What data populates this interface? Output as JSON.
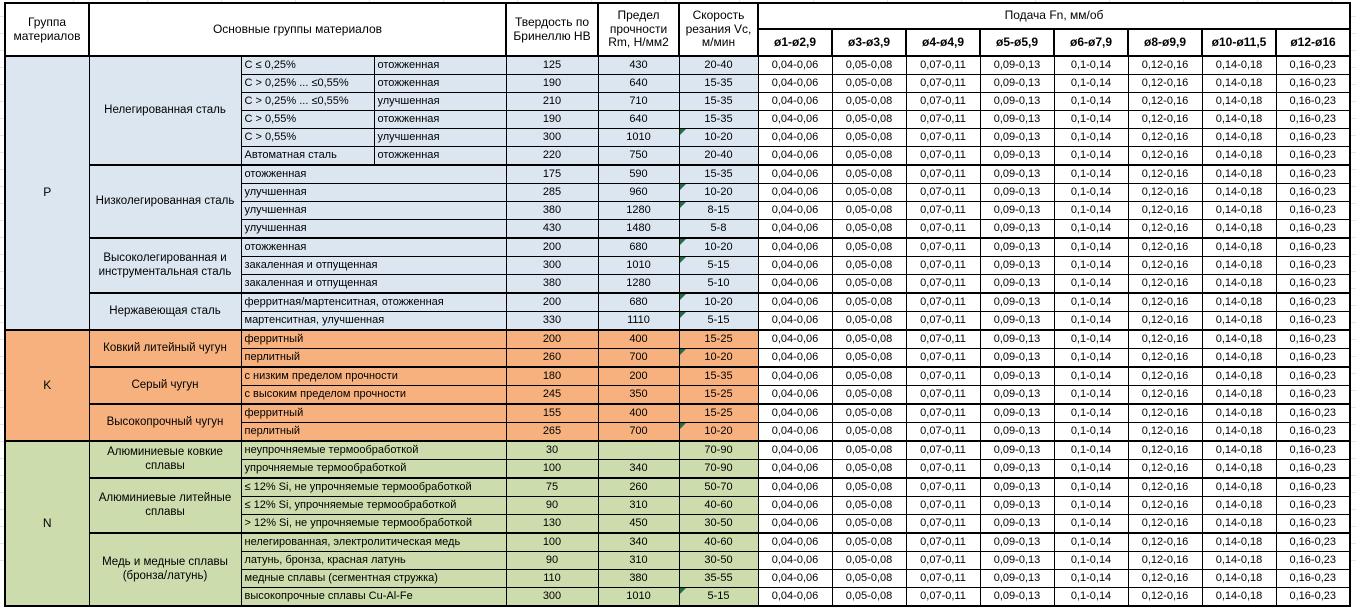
{
  "colors": {
    "p_section": "#dce6f1",
    "k_section": "#f7b17e",
    "n_section": "#ccdcad",
    "marker_green": "#1e7145"
  },
  "table": {
    "headers": {
      "group": "Группа материалов",
      "main_groups": "Основные группы материалов",
      "hardness": "Твердость по Бринеллю HB",
      "strength": "Предел прочности Rm, Н/мм2",
      "speed": "Скорость резания Vc, м/мин",
      "feed": "Подача Fn, мм/об",
      "diameters": [
        "ø1-ø2,9",
        "ø3-ø3,9",
        "ø4-ø4,9",
        "ø5-ø5,9",
        "ø6-ø7,9",
        "ø8-ø9,9",
        "ø10-ø11,5",
        "ø12-ø16"
      ]
    },
    "feed_values": [
      "0,04-0,06",
      "0,05-0,08",
      "0,07-0,11",
      "0,09-0,13",
      "0,1-0,14",
      "0,12-0,16",
      "0,14-0,18",
      "0,16-0,23"
    ],
    "groups": [
      {
        "code": "P",
        "subgroups": [
          {
            "name": "Нелегированная сталь",
            "rows": [
              {
                "c1": "C ≤ 0,25%",
                "c2": "отожженная",
                "hb": "125",
                "rm": "430",
                "vc": "20-40",
                "marker": false
              },
              {
                "c1": "C > 0,25% ... ≤0,55%",
                "c2": "отожженная",
                "hb": "190",
                "rm": "640",
                "vc": "15-35",
                "marker": false
              },
              {
                "c1": "C > 0,25% ... ≤0,55%",
                "c2": "улучшенная",
                "hb": "210",
                "rm": "710",
                "vc": "15-35",
                "marker": false
              },
              {
                "c1": "C > 0,55%",
                "c2": "отожженная",
                "hb": "190",
                "rm": "640",
                "vc": "15-35",
                "marker": false
              },
              {
                "c1": "C > 0,55%",
                "c2": "улучшенная",
                "hb": "300",
                "rm": "1010",
                "vc": "10-20",
                "marker": true
              },
              {
                "c1": "Автоматная сталь",
                "c2": "отожженная",
                "hb": "220",
                "rm": "750",
                "vc": "20-40",
                "marker": false
              }
            ]
          },
          {
            "name": "Низколегированная сталь",
            "rows": [
              {
                "c1": "отожженная",
                "c2": null,
                "hb": "175",
                "rm": "590",
                "vc": "15-35",
                "marker": false
              },
              {
                "c1": "улучшенная",
                "c2": null,
                "hb": "285",
                "rm": "960",
                "vc": "10-20",
                "marker": true
              },
              {
                "c1": "улучшенная",
                "c2": null,
                "hb": "380",
                "rm": "1280",
                "vc": "8-15",
                "marker": true
              },
              {
                "c1": "улучшенная",
                "c2": null,
                "hb": "430",
                "rm": "1480",
                "vc": "5-8",
                "marker": false
              }
            ]
          },
          {
            "name": "Высоколегированная и инструментальная сталь",
            "rows": [
              {
                "c1": "отожженная",
                "c2": null,
                "hb": "200",
                "rm": "680",
                "vc": "10-20",
                "marker": true
              },
              {
                "c1": "закаленная и отпущенная",
                "c2": null,
                "hb": "300",
                "rm": "1010",
                "vc": "5-15",
                "marker": true
              },
              {
                "c1": "закаленная и отпущенная",
                "c2": null,
                "hb": "380",
                "rm": "1280",
                "vc": "5-10",
                "marker": false
              }
            ]
          },
          {
            "name": "Нержавеющая сталь",
            "rows": [
              {
                "c1": "ферритная/мартенситная, отожженная",
                "c2": null,
                "hb": "200",
                "rm": "680",
                "vc": "10-20",
                "marker": true
              },
              {
                "c1": "мартенситная, улучшенная",
                "c2": null,
                "hb": "330",
                "rm": "1110",
                "vc": "5-15",
                "marker": true
              }
            ]
          }
        ]
      },
      {
        "code": "K",
        "subgroups": [
          {
            "name": "Ковкий литейный чугун",
            "rows": [
              {
                "c1": "ферритный",
                "c2": null,
                "hb": "200",
                "rm": "400",
                "vc": "15-25",
                "marker": false
              },
              {
                "c1": "перлитный",
                "c2": null,
                "hb": "260",
                "rm": "700",
                "vc": "10-20",
                "marker": true
              }
            ]
          },
          {
            "name": "Серый чугун",
            "rows": [
              {
                "c1": "с низким пределом прочности",
                "c2": null,
                "hb": "180",
                "rm": "200",
                "vc": "15-35",
                "marker": false
              },
              {
                "c1": "с высоким пределом прочности",
                "c2": null,
                "hb": "245",
                "rm": "350",
                "vc": "15-25",
                "marker": false
              }
            ]
          },
          {
            "name": "Высокопрочный чугун",
            "rows": [
              {
                "c1": "ферритный",
                "c2": null,
                "hb": "155",
                "rm": "400",
                "vc": "15-25",
                "marker": false
              },
              {
                "c1": "перлитный",
                "c2": null,
                "hb": "265",
                "rm": "700",
                "vc": "10-20",
                "marker": true
              }
            ]
          }
        ]
      },
      {
        "code": "N",
        "subgroups": [
          {
            "name": "Алюминиевые ковкие сплавы",
            "rows": [
              {
                "c1": "неупрочняемые термообработкой",
                "c2": null,
                "hb": "30",
                "rm": "",
                "vc": "70-90",
                "marker": false
              },
              {
                "c1": "упрочняемые термообработкой",
                "c2": null,
                "hb": "100",
                "rm": "340",
                "vc": "70-90",
                "marker": false
              }
            ]
          },
          {
            "name": "Алюминиевые литейные сплавы",
            "rows": [
              {
                "c1": "≤ 12% Si, не упрочняемые термообработкой",
                "c2": null,
                "hb": "75",
                "rm": "260",
                "vc": "50-70",
                "marker": false
              },
              {
                "c1": "≤ 12% Si, упрочняемые термообработкой",
                "c2": null,
                "hb": "90",
                "rm": "310",
                "vc": "40-60",
                "marker": false
              },
              {
                "c1": "> 12% Si, не упрочняемые термообработкой",
                "c2": null,
                "hb": "130",
                "rm": "450",
                "vc": "30-50",
                "marker": false
              }
            ]
          },
          {
            "name": "Медь и медные сплавы (бронза/латунь)",
            "rows": [
              {
                "c1": "нелегированная, электролитическая медь",
                "c2": null,
                "hb": "100",
                "rm": "340",
                "vc": "40-60",
                "marker": false
              },
              {
                "c1": "латунь, бронза, красная латунь",
                "c2": null,
                "hb": "90",
                "rm": "310",
                "vc": "30-50",
                "marker": false
              },
              {
                "c1": "медные сплавы (сегментная стружка)",
                "c2": null,
                "hb": "110",
                "rm": "380",
                "vc": "35-55",
                "marker": false
              },
              {
                "c1": "высокопрочные сплавы Cu-Al-Fe",
                "c2": null,
                "hb": "300",
                "rm": "1010",
                "vc": "5-15",
                "marker": true
              }
            ]
          }
        ]
      }
    ]
  }
}
